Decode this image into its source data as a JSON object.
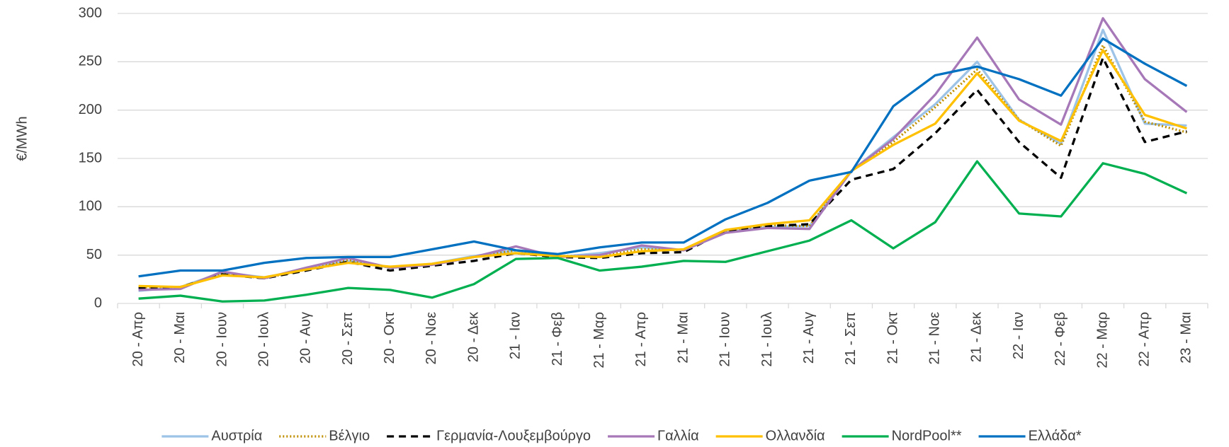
{
  "chart_data": {
    "type": "line",
    "y_label": "€/MWh",
    "categories": [
      "20 - Απρ",
      "20 - Μαι",
      "20 - Ιουν",
      "20 - Ιουλ",
      "20 - Αυγ",
      "20 - Σεπ",
      "20 - Οκτ",
      "20 - Νοε",
      "20 - Δεκ",
      "21 - Ιαν",
      "21 - Φεβ",
      "21 - Μαρ",
      "21 - Απρ",
      "21 - Μαι",
      "21 - Ιουν",
      "21 - Ιουλ",
      "21 - Αυγ",
      "21 - Σεπ",
      "21 - Οκτ",
      "21 - Νοε",
      "21 - Δεκ",
      "22 - Ιαν",
      "22 - Φεβ",
      "22 - Μαρ",
      "22 - Απρ",
      "23 - Μαι"
    ],
    "series": [
      {
        "name": "Αυστρία",
        "color": "#9dc3e6",
        "dash": "solid",
        "values": [
          13,
          17,
          32,
          27,
          35,
          44,
          37,
          41,
          49,
          55,
          48,
          52,
          58,
          55,
          74,
          79,
          80,
          137,
          172,
          206,
          250,
          190,
          165,
          283,
          186,
          184
        ]
      },
      {
        "name": "Βέλγιο",
        "color": "#bf8f00",
        "dash": "dotted",
        "values": [
          17,
          16,
          31,
          26,
          35,
          45,
          37,
          40,
          48,
          55,
          49,
          49,
          56,
          55,
          75,
          81,
          80,
          137,
          167,
          203,
          242,
          190,
          163,
          267,
          188,
          177
        ]
      },
      {
        "name": "Γερμανία-Λουξεμβούργο",
        "color": "#000000",
        "dash": "dashed",
        "values": [
          16,
          17,
          30,
          26,
          34,
          43,
          34,
          39,
          44,
          52,
          48,
          47,
          52,
          53,
          75,
          80,
          82,
          128,
          139,
          176,
          221,
          167,
          130,
          254,
          167,
          178
        ]
      },
      {
        "name": "Γαλλία",
        "color": "#a678b8",
        "dash": "solid",
        "values": [
          14,
          15,
          33,
          26,
          37,
          47,
          37,
          40,
          48,
          59,
          48,
          50,
          60,
          55,
          73,
          78,
          77,
          137,
          170,
          216,
          275,
          211,
          185,
          295,
          232,
          198
        ]
      },
      {
        "name": "Ολλανδία",
        "color": "#ffc000",
        "dash": "solid",
        "values": [
          18,
          17,
          29,
          27,
          35,
          42,
          38,
          41,
          48,
          52,
          49,
          48,
          54,
          56,
          76,
          82,
          86,
          137,
          164,
          186,
          238,
          189,
          168,
          262,
          195,
          181
        ]
      },
      {
        "name": "NordPool**",
        "color": "#00b050",
        "dash": "solid",
        "values": [
          5,
          8,
          2,
          3,
          9,
          16,
          14,
          6,
          20,
          46,
          47,
          34,
          38,
          44,
          43,
          54,
          65,
          86,
          57,
          84,
          147,
          93,
          90,
          145,
          134,
          114
        ]
      },
      {
        "name": "Ελλάδα*",
        "color": "#0070c0",
        "dash": "solid",
        "values": [
          28,
          34,
          34,
          42,
          47,
          48,
          48,
          56,
          64,
          55,
          51,
          58,
          63,
          63,
          87,
          104,
          127,
          136,
          204,
          236,
          245,
          232,
          215,
          274,
          248,
          225
        ]
      }
    ],
    "ylim": [
      0,
      300
    ],
    "yticks": [
      0,
      50,
      100,
      150,
      200,
      250,
      300
    ],
    "grid": true,
    "legend": "bottom"
  }
}
